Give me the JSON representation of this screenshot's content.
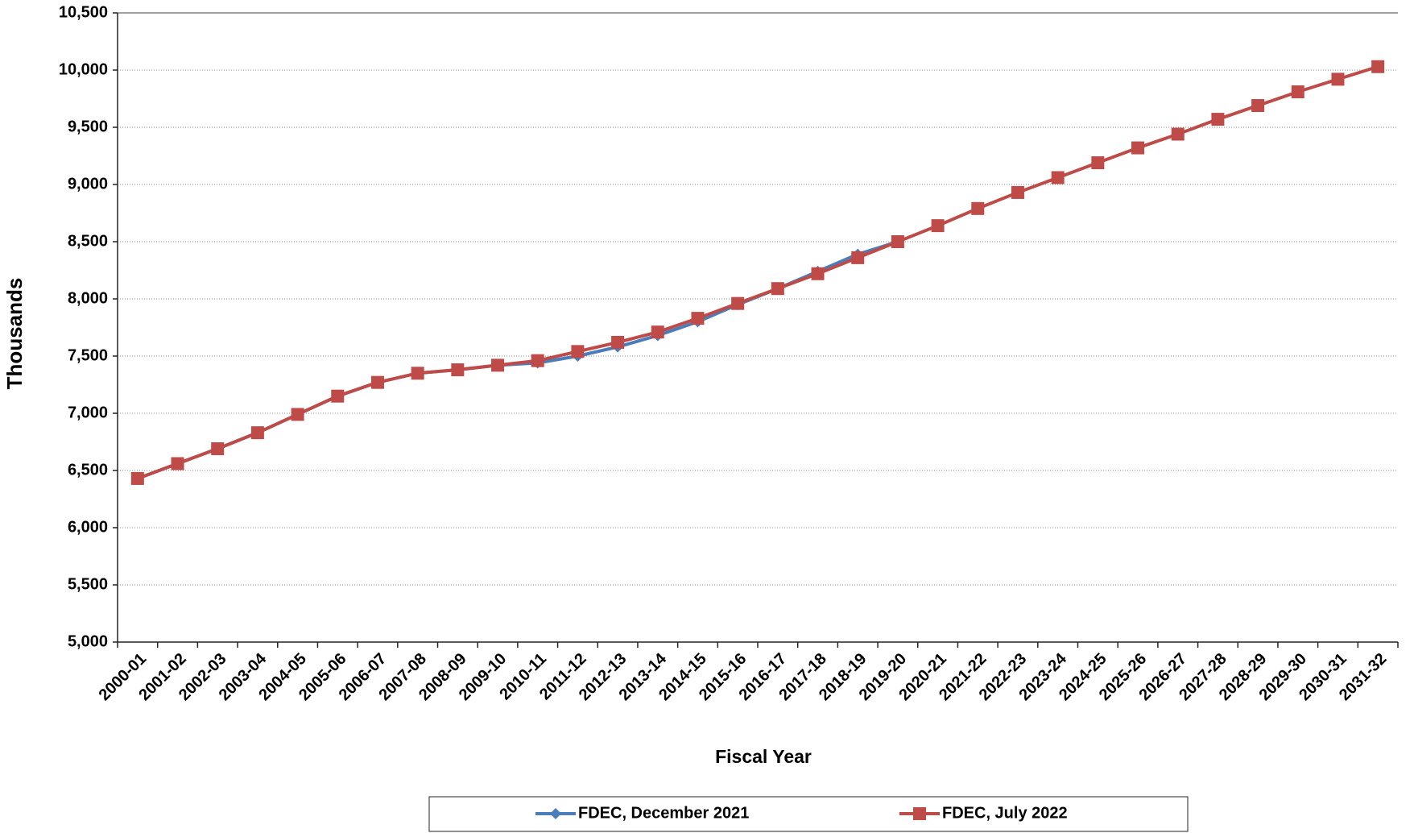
{
  "chart_data": {
    "type": "line",
    "x_label": "Fiscal Year",
    "y_label": "Thousands",
    "categories": [
      "2000-01",
      "2001-02",
      "2002-03",
      "2003-04",
      "2004-05",
      "2005-06",
      "2006-07",
      "2007-08",
      "2008-09",
      "2009-10",
      "2010-11",
      "2011-12",
      "2012-13",
      "2013-14",
      "2014-15",
      "2015-16",
      "2016-17",
      "2017-18",
      "2018-19",
      "2019-20",
      "2020-21",
      "2021-22",
      "2022-23",
      "2023-24",
      "2024-25",
      "2025-26",
      "2026-27",
      "2027-28",
      "2028-29",
      "2029-30",
      "2030-31",
      "2031-32"
    ],
    "series": [
      {
        "name": "FDEC, December 2021",
        "color": "#4a7ebb",
        "marker": "diamond",
        "values": [
          6430,
          6560,
          6690,
          6830,
          6990,
          7150,
          7270,
          7350,
          7380,
          7420,
          7440,
          7500,
          7580,
          7680,
          7800,
          7950,
          8090,
          8240,
          8390,
          8500,
          null,
          null,
          null,
          null,
          null,
          null,
          null,
          null,
          null,
          null,
          null,
          null
        ]
      },
      {
        "name": "FDEC, July 2022",
        "color": "#be4b48",
        "marker": "square",
        "values": [
          6430,
          6560,
          6690,
          6830,
          6990,
          7150,
          7270,
          7350,
          7380,
          7420,
          7460,
          7540,
          7620,
          7710,
          7830,
          7960,
          8090,
          8220,
          8360,
          8500,
          8640,
          8790,
          8930,
          9060,
          9190,
          9320,
          9440,
          9570,
          9690,
          9810,
          9920,
          10030
        ]
      }
    ],
    "ylim": [
      5000,
      10500
    ],
    "yticks": [
      {
        "value": 5000,
        "label": "5,000"
      },
      {
        "value": 5500,
        "label": "5,500"
      },
      {
        "value": 6000,
        "label": "6,000"
      },
      {
        "value": 6500,
        "label": "6,500"
      },
      {
        "value": 7000,
        "label": "7,000"
      },
      {
        "value": 7500,
        "label": "7,500"
      },
      {
        "value": 8000,
        "label": "8,000"
      },
      {
        "value": 8500,
        "label": "8,500"
      },
      {
        "value": 9000,
        "label": "9,000"
      },
      {
        "value": 9500,
        "label": "9,500"
      },
      {
        "value": 10000,
        "label": "10,000"
      },
      {
        "value": 10500,
        "label": "10,500"
      }
    ],
    "grid": true,
    "legend": "bottom"
  }
}
